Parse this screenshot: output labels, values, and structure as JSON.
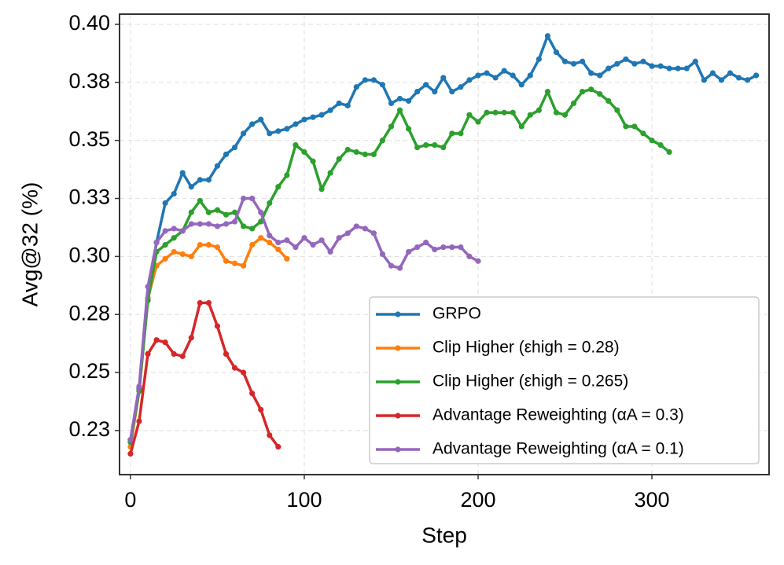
{
  "chart_data": {
    "type": "line",
    "xlabel": "Step",
    "ylabel": "Avg@32 (%)",
    "xlim": [
      -6.3,
      367.4
    ],
    "xticks": [
      0,
      100,
      200,
      300
    ],
    "ylim": [
      0.206,
      0.4044
    ],
    "yticks": [
      {
        "value": 0.225,
        "label": "0.23"
      },
      0.25,
      {
        "value": 0.275,
        "label": "0.28"
      },
      {
        "value": 0.3,
        "label": "0.30"
      },
      {
        "value": 0.325,
        "label": "0.33"
      },
      0.35,
      {
        "value": 0.375,
        "label": "0.38"
      },
      {
        "value": 0.4,
        "label": "0.40"
      }
    ],
    "grid": true,
    "legend": "lower right",
    "series": [
      {
        "name": "GRPO",
        "color": "#1f77b4",
        "x": [
          0,
          5,
          10,
          15,
          20,
          25,
          30,
          35,
          40,
          45,
          50,
          55,
          60,
          65,
          70,
          75,
          80,
          85,
          90,
          95,
          100,
          105,
          110,
          115,
          120,
          125,
          130,
          135,
          140,
          145,
          150,
          155,
          160,
          165,
          170,
          175,
          180,
          185,
          190,
          195,
          200,
          205,
          210,
          215,
          220,
          225,
          230,
          235,
          240,
          245,
          250,
          255,
          260,
          265,
          270,
          275,
          280,
          285,
          290,
          295,
          300,
          305,
          310,
          315,
          320,
          325,
          330,
          335,
          340,
          345,
          350,
          355,
          360
        ],
        "values": [
          0.221,
          0.243,
          0.282,
          0.306,
          0.323,
          0.327,
          0.336,
          0.33,
          0.333,
          0.333,
          0.339,
          0.344,
          0.347,
          0.353,
          0.357,
          0.359,
          0.353,
          0.354,
          0.355,
          0.357,
          0.359,
          0.36,
          0.361,
          0.363,
          0.366,
          0.365,
          0.373,
          0.376,
          0.376,
          0.374,
          0.366,
          0.368,
          0.367,
          0.371,
          0.374,
          0.371,
          0.377,
          0.371,
          0.373,
          0.376,
          0.378,
          0.379,
          0.377,
          0.38,
          0.378,
          0.374,
          0.378,
          0.385,
          0.395,
          0.388,
          0.384,
          0.383,
          0.384,
          0.379,
          0.378,
          0.381,
          0.383,
          0.385,
          0.383,
          0.384,
          0.382,
          0.382,
          0.381,
          0.381,
          0.381,
          0.384,
          0.376,
          0.379,
          0.376,
          0.379,
          0.377,
          0.376,
          0.378
        ]
      },
      {
        "name": "Clip Higher (εhigh = 0.28)",
        "color": "#ff7f0e",
        "x": [
          0,
          5,
          10,
          15,
          20,
          25,
          30,
          35,
          40,
          45,
          50,
          55,
          60,
          65,
          70,
          75,
          80,
          85,
          90
        ],
        "values": [
          0.218,
          0.242,
          0.282,
          0.296,
          0.299,
          0.302,
          0.301,
          0.3,
          0.305,
          0.305,
          0.304,
          0.298,
          0.297,
          0.296,
          0.305,
          0.308,
          0.306,
          0.303,
          0.299
        ]
      },
      {
        "name": "Clip Higher (εhigh = 0.265)",
        "color": "#2ca02c",
        "x": [
          0,
          5,
          10,
          15,
          20,
          25,
          30,
          35,
          40,
          45,
          50,
          55,
          60,
          65,
          70,
          75,
          80,
          85,
          90,
          95,
          100,
          105,
          110,
          115,
          120,
          125,
          130,
          135,
          140,
          145,
          150,
          155,
          160,
          165,
          170,
          175,
          180,
          185,
          190,
          195,
          200,
          205,
          210,
          215,
          220,
          225,
          230,
          235,
          240,
          245,
          250,
          255,
          260,
          265,
          270,
          275,
          280,
          285,
          290,
          295,
          300,
          305,
          310
        ],
        "values": [
          0.22,
          0.242,
          0.281,
          0.302,
          0.305,
          0.308,
          0.311,
          0.319,
          0.324,
          0.319,
          0.32,
          0.318,
          0.319,
          0.313,
          0.312,
          0.315,
          0.323,
          0.33,
          0.335,
          0.348,
          0.345,
          0.341,
          0.329,
          0.336,
          0.342,
          0.346,
          0.345,
          0.344,
          0.344,
          0.35,
          0.356,
          0.363,
          0.355,
          0.347,
          0.348,
          0.348,
          0.347,
          0.353,
          0.353,
          0.361,
          0.358,
          0.362,
          0.362,
          0.362,
          0.362,
          0.356,
          0.361,
          0.363,
          0.371,
          0.362,
          0.361,
          0.366,
          0.371,
          0.372,
          0.37,
          0.367,
          0.363,
          0.356,
          0.356,
          0.353,
          0.35,
          0.348,
          0.345
        ]
      },
      {
        "name": "Advantage Reweighting (αA = 0.3)",
        "color": "#d62728",
        "x": [
          0,
          5,
          10,
          15,
          20,
          25,
          30,
          35,
          40,
          45,
          50,
          55,
          60,
          65,
          70,
          75,
          80,
          85
        ],
        "values": [
          0.215,
          0.229,
          0.258,
          0.264,
          0.263,
          0.258,
          0.257,
          0.265,
          0.28,
          0.28,
          0.27,
          0.258,
          0.252,
          0.25,
          0.241,
          0.234,
          0.223,
          0.218
        ]
      },
      {
        "name": "Advantage Reweighting (αA = 0.1)",
        "color": "#9467bd",
        "x": [
          0,
          5,
          10,
          15,
          20,
          25,
          30,
          35,
          40,
          45,
          50,
          55,
          60,
          65,
          70,
          75,
          80,
          85,
          90,
          95,
          100,
          105,
          110,
          115,
          120,
          125,
          130,
          135,
          140,
          145,
          150,
          155,
          160,
          165,
          170,
          175,
          180,
          185,
          190,
          195,
          200
        ],
        "values": [
          0.221,
          0.244,
          0.287,
          0.306,
          0.311,
          0.312,
          0.311,
          0.314,
          0.314,
          0.314,
          0.313,
          0.314,
          0.315,
          0.325,
          0.325,
          0.319,
          0.309,
          0.306,
          0.307,
          0.304,
          0.308,
          0.305,
          0.307,
          0.302,
          0.308,
          0.31,
          0.313,
          0.312,
          0.31,
          0.301,
          0.296,
          0.295,
          0.302,
          0.304,
          0.306,
          0.303,
          0.304,
          0.304,
          0.304,
          0.3,
          0.298
        ]
      }
    ]
  }
}
